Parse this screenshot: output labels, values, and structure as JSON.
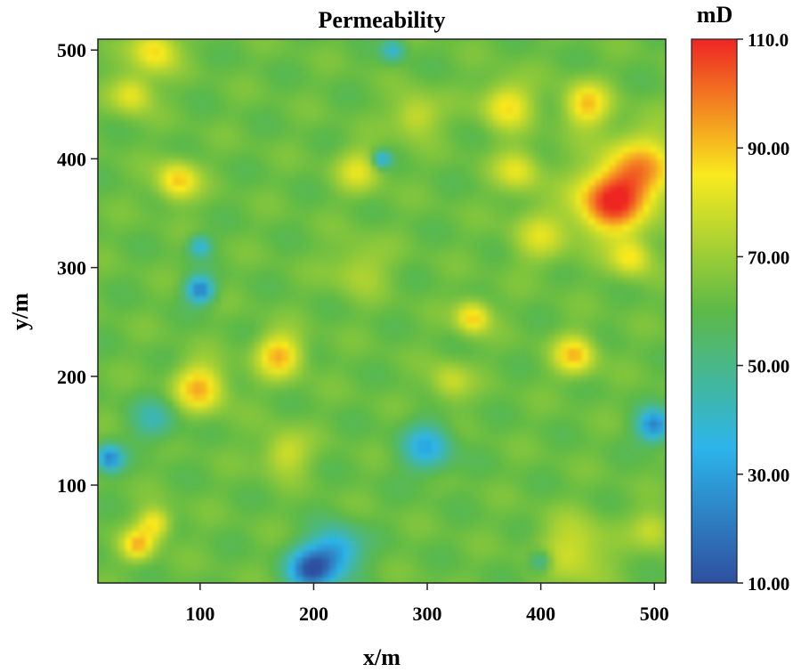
{
  "chart_data": {
    "type": "heatmap",
    "title": "Permeability",
    "xlabel": "x/m",
    "ylabel": "y/m",
    "xlim": [
      10,
      510
    ],
    "ylim": [
      10,
      510
    ],
    "x_ticks": [
      100,
      200,
      300,
      400,
      500
    ],
    "y_ticks": [
      100,
      200,
      300,
      400,
      500
    ],
    "colorbar": {
      "unit": "mD",
      "range": [
        10,
        110
      ],
      "ticks": [
        "10.00",
        "30.00",
        "50.00",
        "70.00",
        "90.00",
        "110.0"
      ],
      "colors": [
        "#2e4fa0",
        "#2cb5ea",
        "#5cb947",
        "#f8ea1e",
        "#ee2524"
      ]
    },
    "background_value": 62,
    "features": [
      {
        "x": 460,
        "y": 360,
        "peak": 104,
        "radius": 30
      },
      {
        "x": 490,
        "y": 390,
        "peak": 92,
        "radius": 35
      },
      {
        "x": 480,
        "y": 310,
        "peak": 85,
        "radius": 18
      },
      {
        "x": 440,
        "y": 450,
        "peak": 90,
        "radius": 20
      },
      {
        "x": 370,
        "y": 450,
        "peak": 86,
        "radius": 22
      },
      {
        "x": 380,
        "y": 390,
        "peak": 82,
        "radius": 20
      },
      {
        "x": 290,
        "y": 440,
        "peak": 80,
        "radius": 20
      },
      {
        "x": 60,
        "y": 500,
        "peak": 88,
        "radius": 20
      },
      {
        "x": 40,
        "y": 460,
        "peak": 84,
        "radius": 18
      },
      {
        "x": 80,
        "y": 380,
        "peak": 90,
        "radius": 18
      },
      {
        "x": 240,
        "y": 390,
        "peak": 80,
        "radius": 20
      },
      {
        "x": 340,
        "y": 255,
        "peak": 90,
        "radius": 15
      },
      {
        "x": 170,
        "y": 220,
        "peak": 92,
        "radius": 20
      },
      {
        "x": 100,
        "y": 190,
        "peak": 92,
        "radius": 22
      },
      {
        "x": 430,
        "y": 220,
        "peak": 90,
        "radius": 18
      },
      {
        "x": 60,
        "y": 65,
        "peak": 88,
        "radius": 14
      },
      {
        "x": 45,
        "y": 45,
        "peak": 90,
        "radius": 14
      },
      {
        "x": 175,
        "y": 130,
        "peak": 80,
        "radius": 20
      },
      {
        "x": 400,
        "y": 330,
        "peak": 78,
        "radius": 25
      },
      {
        "x": 320,
        "y": 195,
        "peak": 78,
        "radius": 18
      },
      {
        "x": 430,
        "y": 40,
        "peak": 80,
        "radius": 30
      },
      {
        "x": 500,
        "y": 60,
        "peak": 78,
        "radius": 18
      },
      {
        "x": 240,
        "y": 300,
        "peak": 74,
        "radius": 25
      },
      {
        "x": 198,
        "y": 22,
        "peak": 14,
        "radius": 20
      },
      {
        "x": 220,
        "y": 40,
        "peak": 30,
        "radius": 22
      },
      {
        "x": 300,
        "y": 135,
        "peak": 34,
        "radius": 22
      },
      {
        "x": 20,
        "y": 125,
        "peak": 24,
        "radius": 12
      },
      {
        "x": 500,
        "y": 155,
        "peak": 22,
        "radius": 15
      },
      {
        "x": 60,
        "y": 160,
        "peak": 45,
        "radius": 20
      },
      {
        "x": 100,
        "y": 280,
        "peak": 20,
        "radius": 12
      },
      {
        "x": 100,
        "y": 320,
        "peak": 36,
        "radius": 10
      },
      {
        "x": 260,
        "y": 400,
        "peak": 32,
        "radius": 8
      },
      {
        "x": 270,
        "y": 500,
        "peak": 38,
        "radius": 10
      },
      {
        "x": 400,
        "y": 30,
        "peak": 40,
        "radius": 10
      }
    ]
  }
}
